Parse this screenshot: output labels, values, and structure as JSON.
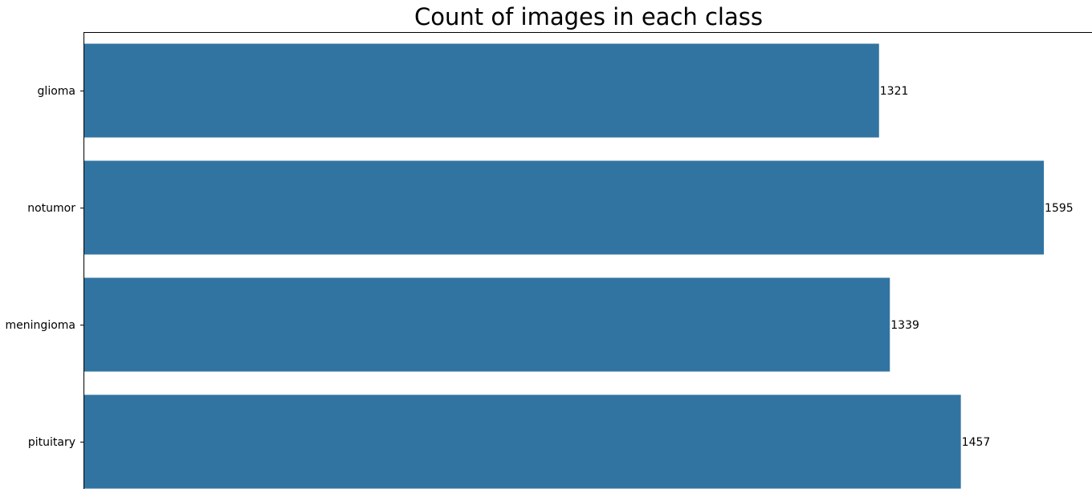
{
  "chart_data": {
    "type": "bar",
    "orientation": "horizontal",
    "title": "Count of images in each class",
    "xlabel": "",
    "ylabel": "",
    "categories": [
      "glioma",
      "notumor",
      "meningioma",
      "pituitary"
    ],
    "values": [
      1321,
      1595,
      1339,
      1457
    ],
    "data_labels": [
      "1321",
      "1595",
      "1339",
      "1457"
    ],
    "xlim": [
      0,
      1675
    ],
    "bar_color": "#3274a1",
    "grid": false,
    "legend": "none"
  }
}
